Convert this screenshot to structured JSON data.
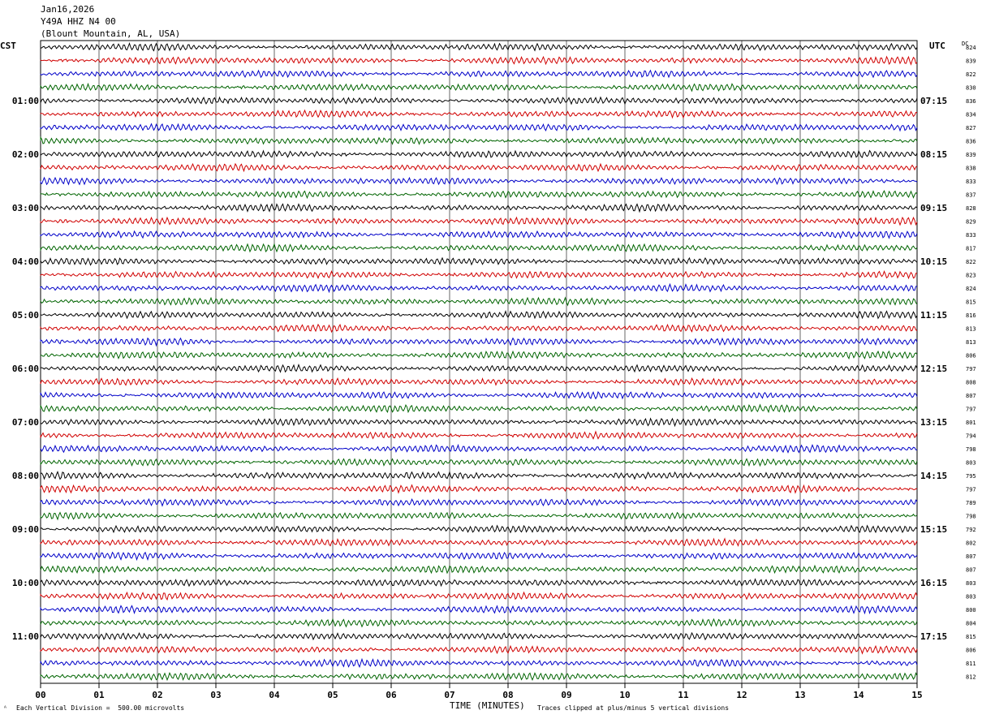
{
  "header": {
    "date": "Jan16,2026",
    "station": "Y49A HHZ N4 00",
    "location": "(Blount Mountain, AL, USA)"
  },
  "left_timezone": "CST",
  "right_timezone": "UTC",
  "dc_label": "DC",
  "footer": {
    "scale_note": "Each Vertical Division =  500.00 microvolts",
    "clip_note": "Traces clipped at plus/minus 5 vertical divisions",
    "xlabel": "TIME (MINUTES)"
  },
  "chart_data": {
    "type": "line",
    "subtype": "helicorder",
    "xlabel": "TIME (MINUTES)",
    "xlim": [
      0,
      15
    ],
    "x_ticks": [
      "00",
      "01",
      "02",
      "03",
      "04",
      "05",
      "06",
      "07",
      "08",
      "09",
      "10",
      "11",
      "12",
      "13",
      "14",
      "15"
    ],
    "rows_per_hour": 4,
    "trace_colors": [
      "#000000",
      "#d00000",
      "#0000c8",
      "#006400"
    ],
    "left_labels": [
      "01:00",
      "02:00",
      "03:00",
      "04:00",
      "05:00",
      "06:00",
      "07:00",
      "08:00",
      "09:00",
      "10:00",
      "11:00"
    ],
    "right_labels": [
      "07:15",
      "08:15",
      "09:15",
      "10:15",
      "11:15",
      "12:15",
      "13:15",
      "14:15",
      "15:15",
      "16:15",
      "17:15"
    ],
    "dc_offsets": [
      824,
      839,
      822,
      830,
      836,
      834,
      827,
      836,
      839,
      838,
      833,
      837,
      828,
      829,
      833,
      817,
      822,
      823,
      824,
      815,
      816,
      813,
      813,
      806,
      797,
      808,
      807,
      797,
      801,
      794,
      798,
      803,
      795,
      797,
      789,
      798,
      792,
      802,
      807,
      807,
      803,
      803,
      800,
      804,
      815,
      806,
      811,
      812
    ],
    "grid": true
  }
}
